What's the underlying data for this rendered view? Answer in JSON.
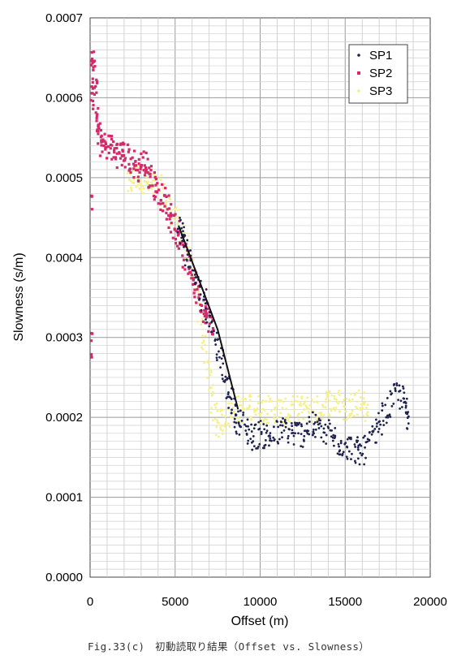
{
  "caption": "Fig.33(c)　初動読取り結果（Offset vs. Slowness）",
  "chart_data": {
    "type": "scatter",
    "title": "",
    "xlabel": "Offset (m)",
    "ylabel": "Slowness (s/m)",
    "xlim": [
      0,
      20000
    ],
    "ylim": [
      0,
      0.0007
    ],
    "x_ticks": [
      "0",
      "5000",
      "10000",
      "15000",
      "20000"
    ],
    "y_ticks": [
      "0.0000",
      "0.0001",
      "0.0002",
      "0.0003",
      "0.0004",
      "0.0005",
      "0.0006",
      "0.0007"
    ],
    "grid": true,
    "legend_position": "top-right",
    "series": [
      {
        "name": "SP1",
        "color": "#1f2350",
        "marker": "dot",
        "points": [
          [
            5200,
            0.00044
          ],
          [
            5500,
            0.00042
          ],
          [
            6000,
            0.00039
          ],
          [
            6500,
            0.00036
          ],
          [
            7000,
            0.00033
          ],
          [
            7500,
            0.00029
          ],
          [
            7900,
            0.00025
          ],
          [
            8300,
            0.00022
          ],
          [
            8600,
            0.0002
          ],
          [
            9000,
            0.00019
          ],
          [
            9500,
            0.000175
          ],
          [
            10000,
            0.00018
          ],
          [
            10500,
            0.000175
          ],
          [
            11000,
            0.00018
          ],
          [
            11500,
            0.000185
          ],
          [
            12000,
            0.00018
          ],
          [
            12500,
            0.00018
          ],
          [
            13000,
            0.00019
          ],
          [
            13500,
            0.000185
          ],
          [
            14000,
            0.00018
          ],
          [
            14500,
            0.00017
          ],
          [
            15000,
            0.000165
          ],
          [
            15500,
            0.00016
          ],
          [
            16000,
            0.000155
          ],
          [
            16500,
            0.00017
          ],
          [
            17000,
            0.00019
          ],
          [
            17500,
            0.00021
          ],
          [
            18000,
            0.00023
          ],
          [
            18500,
            0.00022
          ],
          [
            18700,
            0.0002
          ]
        ],
        "line_points": [
          [
            5200,
            0.00044
          ],
          [
            7500,
            0.00031
          ],
          [
            8700,
            0.00021
          ]
        ]
      },
      {
        "name": "SP2",
        "color": "#d42a6a",
        "marker": "square",
        "points": [
          [
            100,
            0.00058
          ],
          [
            200,
            0.00066
          ],
          [
            300,
            0.0006
          ],
          [
            500,
            0.00055
          ],
          [
            800,
            0.00054
          ],
          [
            1200,
            0.00054
          ],
          [
            1600,
            0.00053
          ],
          [
            2000,
            0.00053
          ],
          [
            2400,
            0.00052
          ],
          [
            2800,
            0.00051
          ],
          [
            3200,
            0.00052
          ],
          [
            3600,
            0.0005
          ],
          [
            4000,
            0.00048
          ],
          [
            4400,
            0.00047
          ],
          [
            4800,
            0.00045
          ],
          [
            5200,
            0.00043
          ],
          [
            5600,
            0.0004
          ],
          [
            6000,
            0.00038
          ],
          [
            6400,
            0.00035
          ],
          [
            6800,
            0.00033
          ],
          [
            7200,
            0.00031
          ],
          [
            100,
            0.00047
          ],
          [
            100,
            0.0003
          ],
          [
            100,
            0.00028
          ]
        ]
      },
      {
        "name": "SP3",
        "color": "#f5f08a",
        "marker": "dot",
        "points": [
          [
            2200,
            0.00049
          ],
          [
            2600,
            0.0005
          ],
          [
            3000,
            0.0005
          ],
          [
            3500,
            0.00049
          ],
          [
            4000,
            0.00049
          ],
          [
            4500,
            0.00047
          ],
          [
            5000,
            0.00045
          ],
          [
            5500,
            0.00043
          ],
          [
            6000,
            0.00038
          ],
          [
            6500,
            0.00032
          ],
          [
            6900,
            0.00027
          ],
          [
            7200,
            0.00022
          ],
          [
            7500,
            0.00019
          ],
          [
            8000,
            0.0002
          ],
          [
            8500,
            0.00021
          ],
          [
            9000,
            0.00021
          ],
          [
            9500,
            0.000215
          ],
          [
            10000,
            0.00021
          ],
          [
            10500,
            0.00021
          ],
          [
            11000,
            0.00021
          ],
          [
            11500,
            0.000205
          ],
          [
            12000,
            0.00021
          ],
          [
            12500,
            0.00021
          ],
          [
            13000,
            0.00021
          ],
          [
            13500,
            0.00021
          ],
          [
            14000,
            0.00022
          ],
          [
            14500,
            0.00022
          ],
          [
            15000,
            0.00021
          ],
          [
            15500,
            0.00022
          ],
          [
            16000,
            0.00022
          ],
          [
            16300,
            0.00021
          ]
        ]
      }
    ]
  }
}
